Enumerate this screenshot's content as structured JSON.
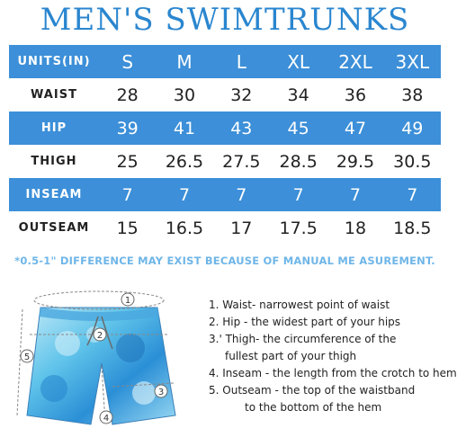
{
  "title": "MEN'S SWIMTRUNKS",
  "table": {
    "header_label": "UNITS(IN)",
    "sizes": [
      "S",
      "M",
      "L",
      "XL",
      "2XL",
      "3XL"
    ],
    "rows": [
      {
        "label": "WAIST",
        "values": [
          "28",
          "30",
          "32",
          "34",
          "36",
          "38"
        ]
      },
      {
        "label": "HIP",
        "values": [
          "39",
          "41",
          "43",
          "45",
          "47",
          "49"
        ]
      },
      {
        "label": "THIGH",
        "values": [
          "25",
          "26.5",
          "27.5",
          "28.5",
          "29.5",
          "30.5"
        ]
      },
      {
        "label": "INSEAM",
        "values": [
          "7",
          "7",
          "7",
          "7",
          "7",
          "7"
        ]
      },
      {
        "label": "OUTSEAM",
        "values": [
          "15",
          "16.5",
          "17",
          "17.5",
          "18",
          "18.5"
        ]
      }
    ]
  },
  "note": "*0.5-1\" DIFFERENCE MAY EXIST BECAUSE OF MANUAL ME ASUREMENT.",
  "markers": [
    "1",
    "2",
    "3",
    "4",
    "5"
  ],
  "legend": {
    "l1": "1. Waist- narrowest point of waist",
    "l2": "2. Hip - the widest part of your hips",
    "l3a": "3.' Thigh- the circumference of the",
    "l3b": "fullest part of your thigh",
    "l4": "4. Inseam - the length from the crotch to hem",
    "l5a": "5. Outseam - the top of the waistband",
    "l5b": "to the bottom of the hem"
  },
  "colors": {
    "accent": "#3c8fd8",
    "title": "#2a86cf",
    "note": "#6fb6e8"
  }
}
